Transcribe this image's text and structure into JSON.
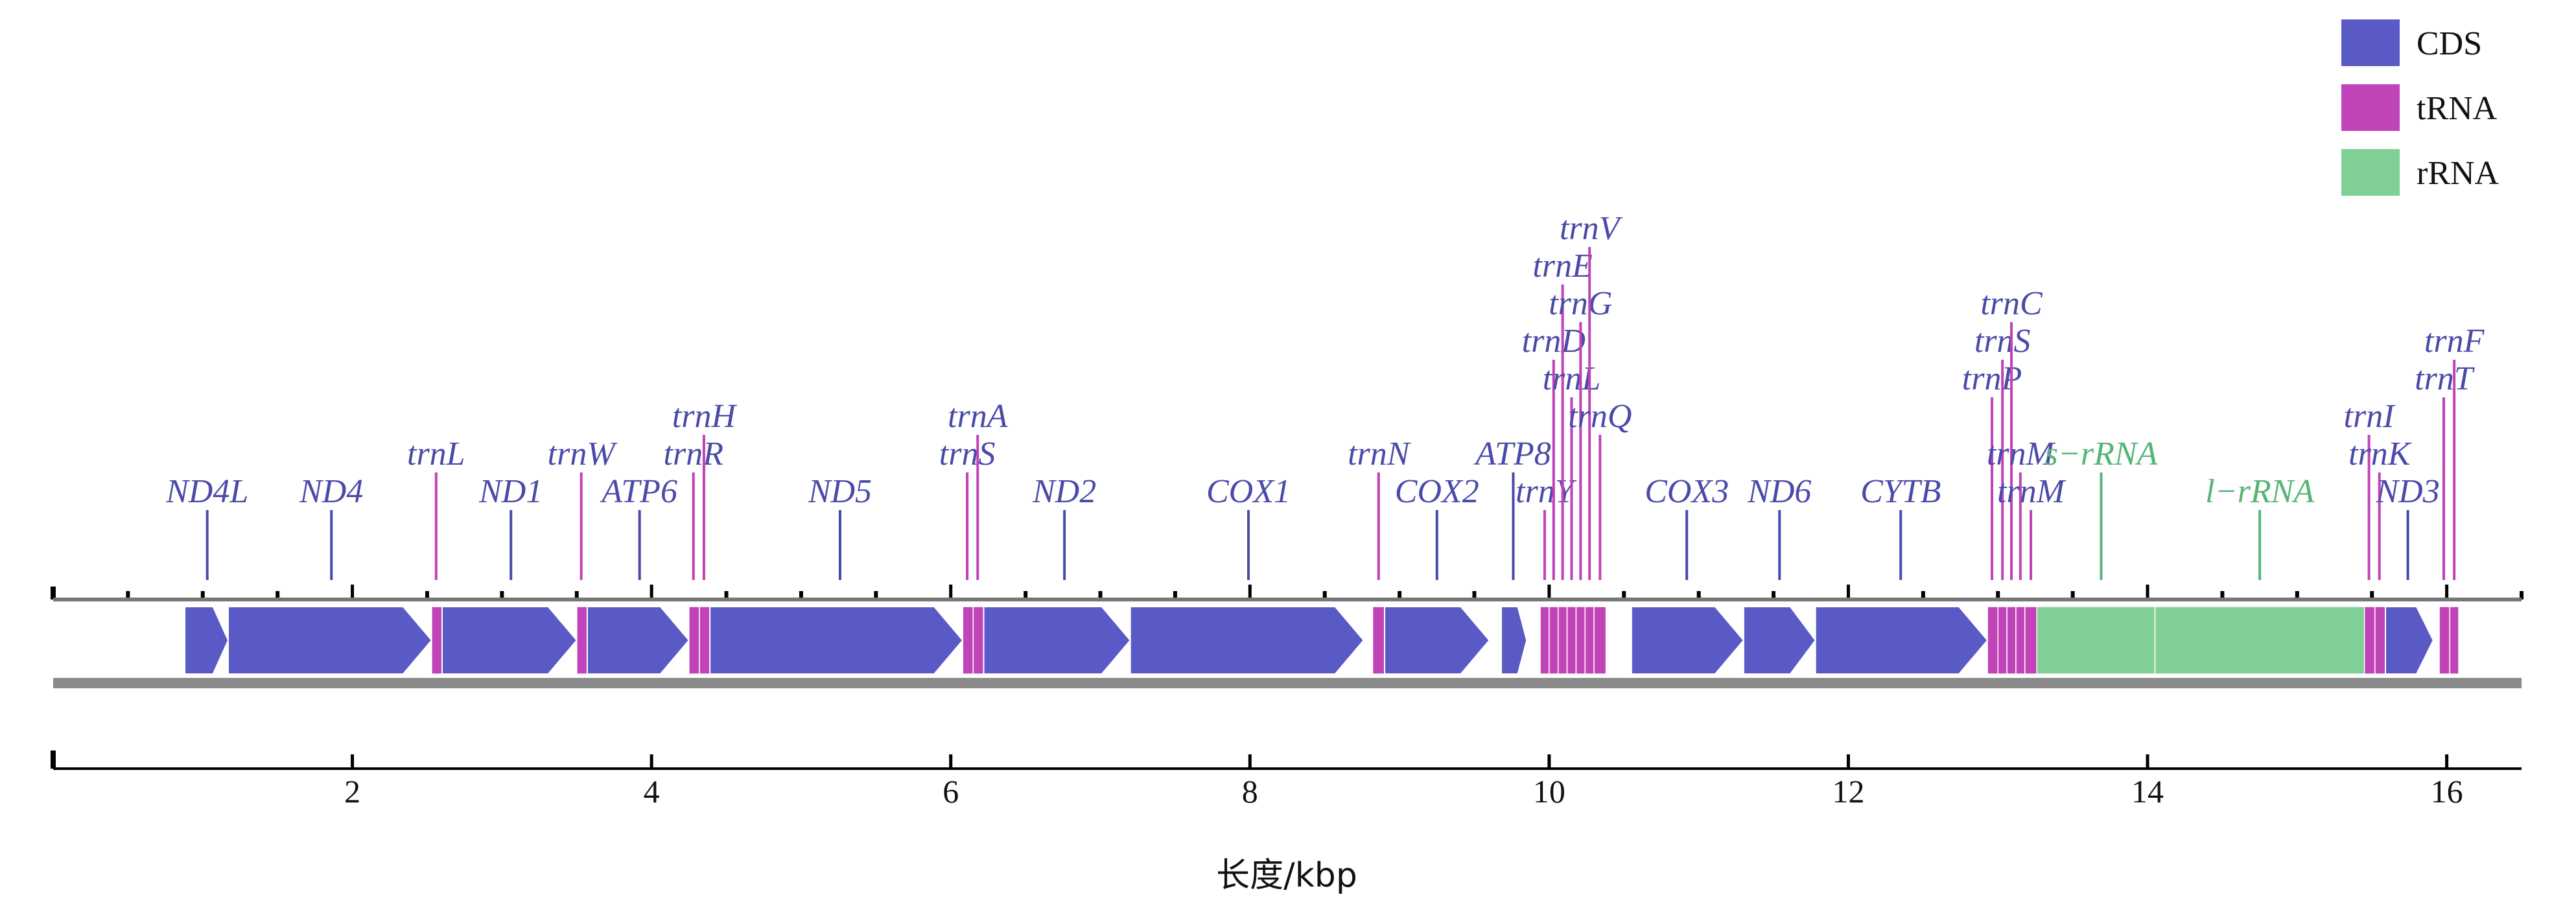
{
  "colors": {
    "CDS": "#5a5ac6",
    "tRNA": "#c043b8",
    "rRNA": "#7fcf97",
    "cds_label": "#4a4aa8",
    "rrna_label": "#55b577",
    "track": "#8a8a8a"
  },
  "legend": [
    {
      "label": "CDS",
      "kind": "CDS"
    },
    {
      "label": "tRNA",
      "kind": "tRNA"
    },
    {
      "label": "rRNA",
      "kind": "rRNA"
    }
  ],
  "axis": {
    "title": "长度/kbp",
    "min": 0,
    "max": 16.5,
    "ticks": [
      "2",
      "4",
      "6",
      "8",
      "10",
      "12",
      "14",
      "16"
    ]
  },
  "features": [
    {
      "name": "ND4L",
      "kind": "CDS",
      "start": 0.88,
      "end": 1.17,
      "label_at": 1.03,
      "row": 0
    },
    {
      "name": "ND4",
      "kind": "CDS",
      "start": 1.17,
      "end": 2.53,
      "label_at": 1.86,
      "row": 0
    },
    {
      "name": "trnL",
      "kind": "tRNA",
      "start": 2.53,
      "end": 2.6,
      "label_at": 2.56,
      "row": 1
    },
    {
      "name": "ND1",
      "kind": "CDS",
      "start": 2.6,
      "end": 3.5,
      "label_at": 3.06,
      "row": 0
    },
    {
      "name": "trnW",
      "kind": "tRNA",
      "start": 3.5,
      "end": 3.57,
      "label_at": 3.53,
      "row": 1
    },
    {
      "name": "ATP6",
      "kind": "CDS",
      "start": 3.57,
      "end": 4.25,
      "label_at": 3.92,
      "row": 0
    },
    {
      "name": "trnR",
      "kind": "tRNA",
      "start": 4.25,
      "end": 4.32,
      "label_at": 4.28,
      "row": 1
    },
    {
      "name": "trnH",
      "kind": "tRNA",
      "start": 4.32,
      "end": 4.39,
      "label_at": 4.35,
      "row": 2
    },
    {
      "name": "ND5",
      "kind": "CDS",
      "start": 4.39,
      "end": 6.08,
      "label_at": 5.26,
      "row": 0
    },
    {
      "name": "trnS",
      "kind": "tRNA",
      "start": 6.08,
      "end": 6.15,
      "label_at": 6.11,
      "row": 1
    },
    {
      "name": "trnA",
      "kind": "tRNA",
      "start": 6.15,
      "end": 6.22,
      "label_at": 6.18,
      "row": 2
    },
    {
      "name": "ND2",
      "kind": "CDS",
      "start": 6.22,
      "end": 7.2,
      "label_at": 6.76,
      "row": 0
    },
    {
      "name": "COX1",
      "kind": "CDS",
      "start": 7.2,
      "end": 8.76,
      "label_at": 7.99,
      "row": 0
    },
    {
      "name": "trnN",
      "kind": "tRNA",
      "start": 8.82,
      "end": 8.9,
      "label_at": 8.86,
      "row": 1
    },
    {
      "name": "COX2",
      "kind": "CDS",
      "start": 8.9,
      "end": 9.6,
      "label_at": 9.25,
      "row": 0
    },
    {
      "name": "ATP8",
      "kind": "CDS",
      "start": 9.68,
      "end": 9.85,
      "label_at": 9.76,
      "row": 1
    },
    {
      "name": "trnY",
      "kind": "tRNA",
      "start": 9.94,
      "end": 10.0,
      "label_at": 9.97,
      "row": 0
    },
    {
      "name": "trnD",
      "kind": "tRNA",
      "start": 10.0,
      "end": 10.06,
      "label_at": 10.03,
      "row": 4
    },
    {
      "name": "trnE",
      "kind": "tRNA",
      "start": 10.06,
      "end": 10.12,
      "label_at": 10.09,
      "row": 6
    },
    {
      "name": "trnL",
      "kind": "tRNA",
      "start": 10.12,
      "end": 10.18,
      "label_at": 10.15,
      "row": 3
    },
    {
      "name": "trnG",
      "kind": "tRNA",
      "start": 10.18,
      "end": 10.24,
      "label_at": 10.21,
      "row": 5
    },
    {
      "name": "trnV",
      "kind": "tRNA",
      "start": 10.24,
      "end": 10.3,
      "label_at": 10.27,
      "row": 7
    },
    {
      "name": "trnQ",
      "kind": "tRNA",
      "start": 10.3,
      "end": 10.38,
      "label_at": 10.34,
      "row": 2
    },
    {
      "name": "COX3",
      "kind": "CDS",
      "start": 10.55,
      "end": 11.3,
      "label_at": 10.92,
      "row": 0
    },
    {
      "name": "ND6",
      "kind": "CDS",
      "start": 11.3,
      "end": 11.78,
      "label_at": 11.54,
      "row": 0
    },
    {
      "name": "CYTB",
      "kind": "CDS",
      "start": 11.78,
      "end": 12.93,
      "label_at": 12.35,
      "row": 0
    },
    {
      "name": "trnP",
      "kind": "tRNA",
      "start": 12.93,
      "end": 13.0,
      "label_at": 12.96,
      "row": 3
    },
    {
      "name": "trnS",
      "kind": "tRNA",
      "start": 13.0,
      "end": 13.06,
      "label_at": 13.03,
      "row": 4
    },
    {
      "name": "trnC",
      "kind": "tRNA",
      "start": 13.06,
      "end": 13.12,
      "label_at": 13.09,
      "row": 5
    },
    {
      "name": "trnM",
      "kind": "tRNA",
      "start": 13.12,
      "end": 13.18,
      "label_at": 13.15,
      "row": 1
    },
    {
      "name": "trnM",
      "kind": "tRNA",
      "start": 13.18,
      "end": 13.26,
      "label_at": 13.22,
      "row": 0
    },
    {
      "name": "s−rRNA",
      "kind": "rRNA",
      "start": 13.26,
      "end": 14.05,
      "label_at": 13.69,
      "row": 1
    },
    {
      "name": "l−rRNA",
      "kind": "rRNA",
      "start": 14.05,
      "end": 15.45,
      "label_at": 14.75,
      "row": 0
    },
    {
      "name": "trnI",
      "kind": "tRNA",
      "start": 15.45,
      "end": 15.52,
      "label_at": 15.48,
      "row": 2
    },
    {
      "name": "trnK",
      "kind": "tRNA",
      "start": 15.52,
      "end": 15.59,
      "label_at": 15.55,
      "row": 1
    },
    {
      "name": "ND3",
      "kind": "CDS",
      "start": 15.59,
      "end": 15.91,
      "label_at": 15.74,
      "row": 0
    },
    {
      "name": "trnT",
      "kind": "tRNA",
      "start": 15.95,
      "end": 16.02,
      "label_at": 15.98,
      "row": 3
    },
    {
      "name": "trnF",
      "kind": "tRNA",
      "start": 16.02,
      "end": 16.08,
      "label_at": 16.05,
      "row": 4
    }
  ]
}
